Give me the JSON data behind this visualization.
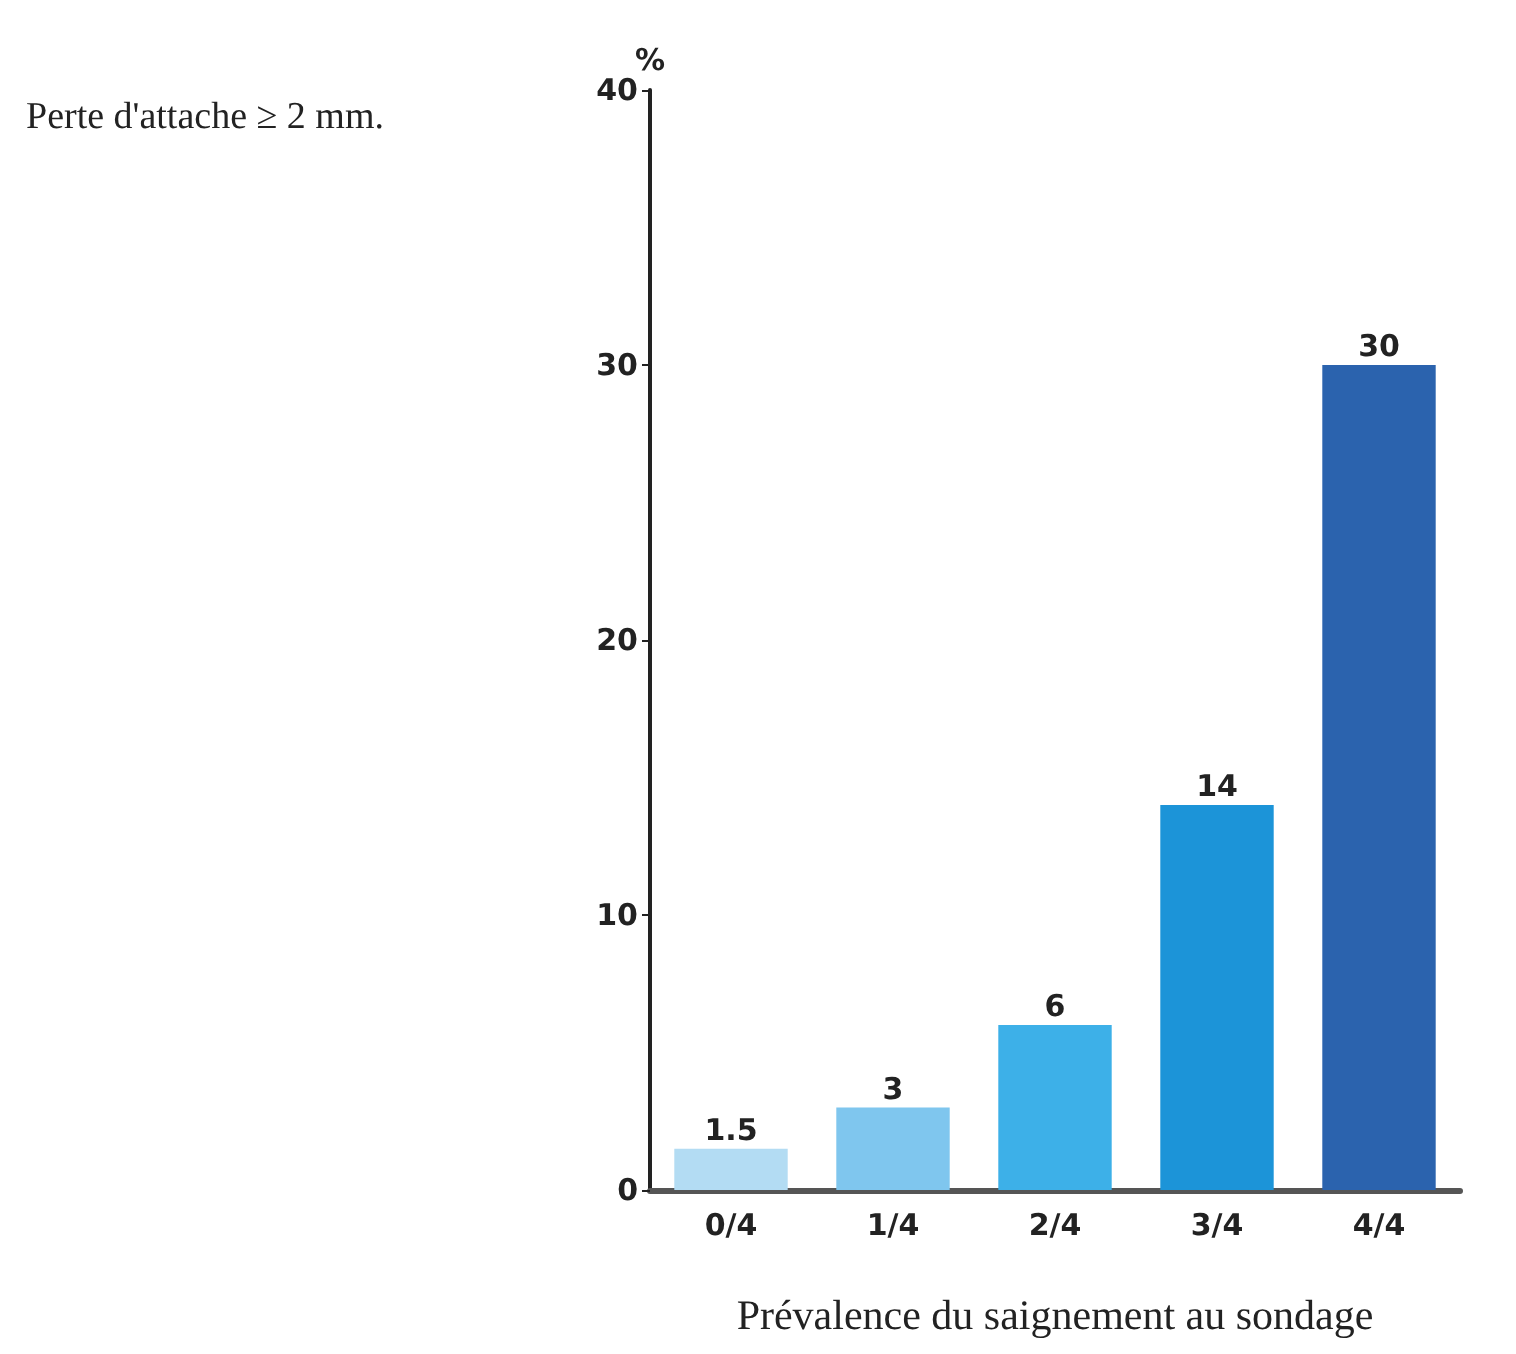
{
  "chart_data": {
    "type": "bar",
    "title": "Perte d'attache ≥ 2 mm.",
    "xlabel": "Prévalence du saignement au sondage",
    "ylabel": "%",
    "categories": [
      "0/4",
      "1/4",
      "2/4",
      "3/4",
      "4/4"
    ],
    "values": [
      1.5,
      3,
      6,
      14,
      30
    ],
    "colors": [
      "#b3dcf3",
      "#7fc6ee",
      "#3db0e8",
      "#1c94d8",
      "#2b63ae"
    ],
    "ylim": [
      0,
      40
    ],
    "yticks": [
      0,
      10,
      20,
      30,
      40
    ],
    "grid": false,
    "data_labels": true
  }
}
